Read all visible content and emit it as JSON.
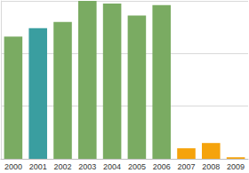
{
  "chart_data": {
    "type": "bar",
    "categories": [
      "2000",
      "2001",
      "2002",
      "2003",
      "2004",
      "2005",
      "2006",
      "2007",
      "2008",
      "2009"
    ],
    "values": [
      2.32,
      2.48,
      2.6,
      3.0,
      2.95,
      2.72,
      2.92,
      0.2,
      0.3,
      0.03
    ],
    "colors": [
      "#7aab62",
      "#3a9ea0",
      "#7aab62",
      "#7aab62",
      "#7aab62",
      "#7aab62",
      "#7aab62",
      "#f5a30c",
      "#f5a30c",
      "#f5a30c"
    ],
    "ylim": [
      0,
      3
    ],
    "yticks": [
      0,
      1,
      2,
      3
    ],
    "grid": true,
    "tick_labels": "x"
  }
}
